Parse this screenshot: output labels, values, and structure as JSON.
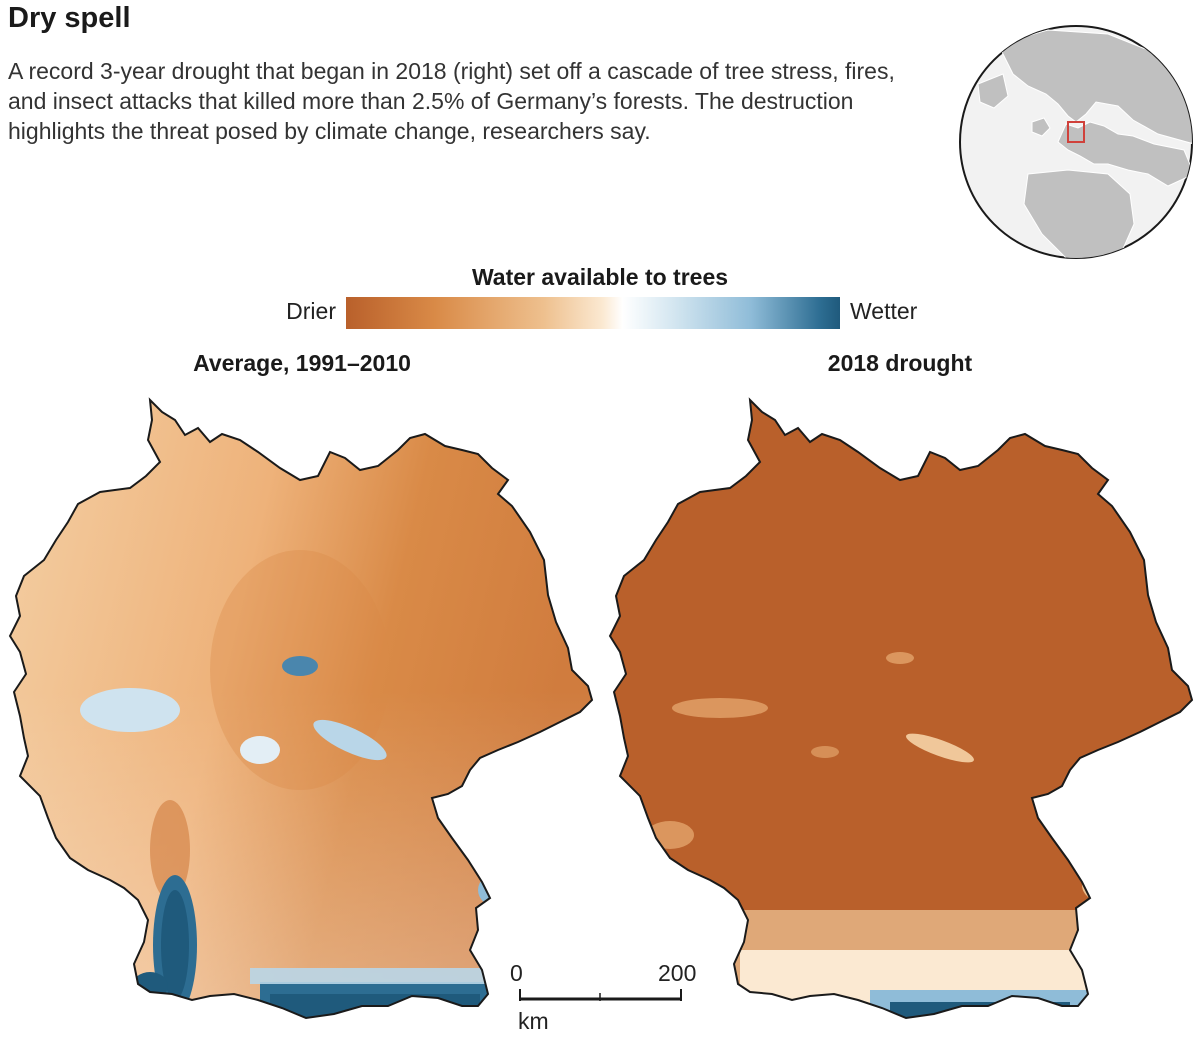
{
  "header": {
    "title": "Dry spell",
    "intro": "A record 3-year drought that began in 2018 (right) set off a cascade of tree stress, fires, and insect attacks that killed more than 2.5% of Germany’s forests. The destruction highlights the threat posed by climate change, researchers say."
  },
  "legend": {
    "title": "Water available to trees",
    "low_label": "Drier",
    "high_label": "Wetter"
  },
  "maps": {
    "left_title": "Average, 1991–2010",
    "right_title": "2018 drought"
  },
  "scale_bar": {
    "start": "0",
    "end": "200",
    "unit": "km"
  },
  "colors": {
    "drier": "#b9602b",
    "neutral": "#ffffff",
    "wetter": "#1f5a7c",
    "locator_highlight": "#d0413b"
  }
}
